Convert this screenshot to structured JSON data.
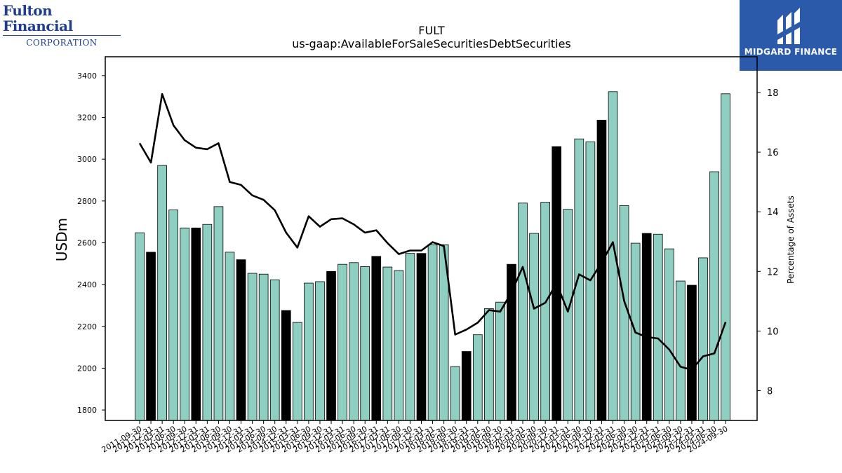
{
  "logos": {
    "left_line1": "Fulton Financial",
    "left_line2": "CORPORATION",
    "right_name": "MIDGARD FINANCE"
  },
  "colors": {
    "bar_default": "#8ecfc2",
    "bar_highlight": "#000000",
    "line": "#000000",
    "logo_right_bg": "#2a5aa9",
    "logo_left_text": "#1f3e8c"
  },
  "chart_data": {
    "type": "bar",
    "title": "FULT",
    "subtitle": "us-gaap:AvailableForSaleSecuritiesDebtSecurities",
    "ylabel": "USDm",
    "y2label": "Percentage of Assets",
    "ylim": [
      1750,
      3490
    ],
    "y2lim": [
      7.0,
      19.2
    ],
    "yticks": [
      1800,
      2000,
      2200,
      2400,
      2600,
      2800,
      3000,
      3200,
      3400
    ],
    "y2ticks": [
      8,
      10,
      12,
      14,
      16,
      18
    ],
    "categories": [
      "2011-09-30",
      "2011-12-31",
      "2012-03-31",
      "2012-06-30",
      "2012-09-30",
      "2012-12-31",
      "2013-03-31",
      "2013-06-30",
      "2013-09-30",
      "2013-12-31",
      "2014-03-31",
      "2014-06-30",
      "2014-09-30",
      "2014-12-31",
      "2015-03-31",
      "2015-06-30",
      "2015-09-30",
      "2015-12-31",
      "2016-03-31",
      "2016-06-30",
      "2016-09-30",
      "2016-12-31",
      "2017-03-31",
      "2017-06-30",
      "2017-09-30",
      "2017-12-31",
      "2018-03-31",
      "2018-06-30",
      "2018-09-30",
      "2018-12-31",
      "2019-03-31",
      "2019-06-30",
      "2019-09-30",
      "2019-12-31",
      "2020-03-31",
      "2020-06-30",
      "2020-09-30",
      "2020-12-31",
      "2021-03-31",
      "2021-06-30",
      "2021-09-30",
      "2021-12-31",
      "2022-03-31",
      "2022-06-30",
      "2022-09-30",
      "2022-12-31",
      "2023-03-31",
      "2023-06-30",
      "2023-09-30",
      "2023-12-31",
      "2024-03-31",
      "2024-06-30",
      "2024-09-30"
    ],
    "series": [
      {
        "type": "bar",
        "values": [
          2648,
          2555,
          2970,
          2757,
          2671,
          2671,
          2688,
          2773,
          2555,
          2519,
          2454,
          2450,
          2423,
          2276,
          2219,
          2407,
          2414,
          2463,
          2497,
          2505,
          2486,
          2535,
          2484,
          2467,
          2549,
          2549,
          2591,
          2591,
          2008,
          2080,
          2160,
          2285,
          2316,
          2497,
          2790,
          2645,
          2794,
          3060,
          2760,
          3097,
          3083,
          3187,
          3323,
          2778,
          2598,
          2645,
          2641,
          2571,
          2417,
          2397,
          2528,
          2940,
          3313
        ],
        "highlight": [
          false,
          true,
          false,
          false,
          false,
          true,
          false,
          false,
          false,
          true,
          false,
          false,
          false,
          true,
          false,
          false,
          false,
          true,
          false,
          false,
          false,
          true,
          false,
          false,
          false,
          true,
          false,
          false,
          false,
          true,
          false,
          false,
          false,
          true,
          false,
          false,
          false,
          true,
          false,
          false,
          false,
          true,
          false,
          false,
          false,
          true,
          false,
          false,
          false,
          true,
          false,
          false,
          false
        ]
      },
      {
        "type": "line",
        "axis": "right",
        "values": [
          16.3,
          15.65,
          17.95,
          16.9,
          16.4,
          16.15,
          16.1,
          16.3,
          15.0,
          14.9,
          14.55,
          14.4,
          14.05,
          13.3,
          12.8,
          13.85,
          13.5,
          13.75,
          13.78,
          13.58,
          13.3,
          13.38,
          12.95,
          12.58,
          12.7,
          12.7,
          12.98,
          12.85,
          9.88,
          10.05,
          10.28,
          10.7,
          10.65,
          11.3,
          12.15,
          10.75,
          10.95,
          11.6,
          10.65,
          11.9,
          11.7,
          12.3,
          12.98,
          11.0,
          9.95,
          9.8,
          9.75,
          9.38,
          8.8,
          8.7,
          9.15,
          9.25,
          10.3
        ]
      }
    ]
  }
}
